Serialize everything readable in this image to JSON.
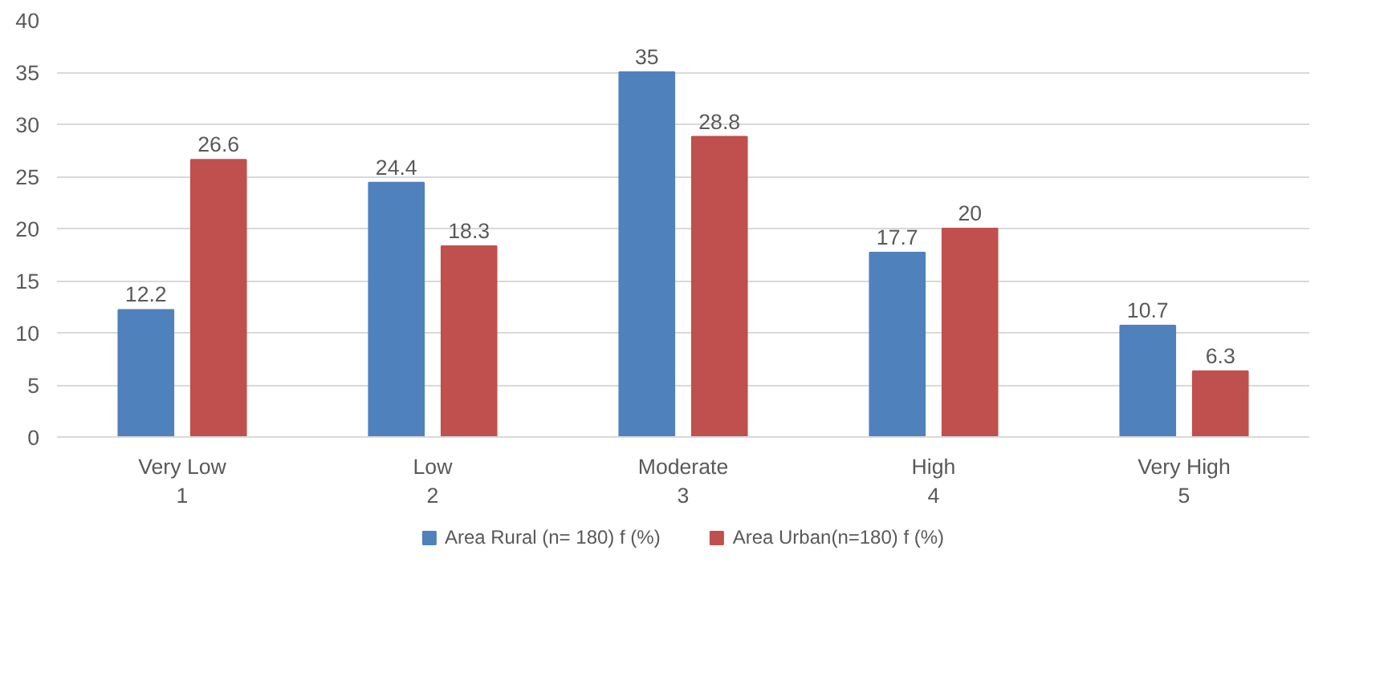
{
  "chart_data": {
    "type": "bar",
    "categories": [
      "Very Low\n1",
      "Low\n2",
      "Moderate\n3",
      "High\n4",
      "Very High\n5"
    ],
    "series": [
      {
        "name": "Area Rural (n= 180) f (%)",
        "color": "#4f81bd",
        "values": [
          12.2,
          24.4,
          35,
          17.7,
          10.7
        ]
      },
      {
        "name": "Area Urban(n=180) f (%)",
        "color": "#c0504d",
        "values": [
          26.6,
          18.3,
          28.8,
          20,
          6.3
        ]
      }
    ],
    "ylim": [
      0,
      40
    ],
    "yticks": [
      0,
      5,
      10,
      15,
      20,
      25,
      30,
      35,
      40
    ],
    "grid": "y",
    "legend": "bottom",
    "data_labels": true
  }
}
